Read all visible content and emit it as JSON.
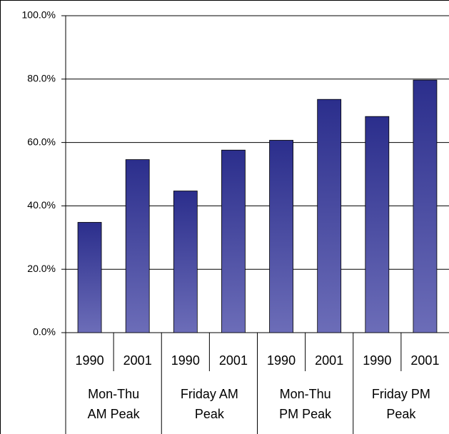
{
  "chart_data": {
    "type": "bar",
    "categories": [
      "1990",
      "2001",
      "1990",
      "2001",
      "1990",
      "2001",
      "1990",
      "2001"
    ],
    "groups": [
      [
        "Mon-Thu",
        "AM Peak"
      ],
      [
        "Friday AM",
        "Peak"
      ],
      [
        "Mon-Thu",
        "PM Peak"
      ],
      [
        "Friday PM",
        "Peak"
      ]
    ],
    "values": [
      34.8,
      54.6,
      44.7,
      57.6,
      60.7,
      73.6,
      68.2,
      79.7
    ],
    "color": "#2b2e8c",
    "ylim": [
      0,
      100
    ],
    "yticks": [
      {
        "value": 0,
        "label": "0.0%"
      },
      {
        "value": 20,
        "label": "20.0%"
      },
      {
        "value": 40,
        "label": "40.0%"
      },
      {
        "value": 60,
        "label": "60.0%"
      },
      {
        "value": 80,
        "label": "80.0%"
      },
      {
        "value": 100,
        "label": "100.0%"
      }
    ],
    "grid": true
  }
}
